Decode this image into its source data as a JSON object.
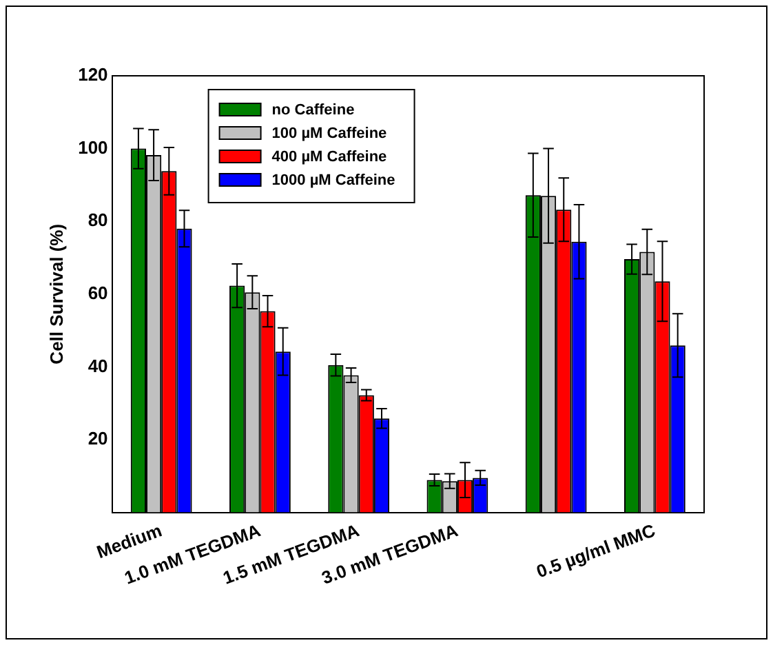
{
  "chart_data": {
    "type": "bar",
    "ylabel": "Cell Survival (%)",
    "categories": [
      "Medium",
      "1.0 mM TEGDMA",
      "1.5 mM TEGDMA",
      "3.0 mM TEGDMA",
      null,
      "0.5 µg/ml MMC"
    ],
    "series": [
      {
        "name": "no Caffeine",
        "color": "#008000",
        "values": [
          100,
          62.3,
          40.5,
          8.9,
          87.2,
          69.6
        ],
        "errors": [
          5.5,
          6,
          3,
          1.6,
          11.5,
          4.1
        ]
      },
      {
        "name": "100 µM Caffeine",
        "color": "#c0c0c0",
        "values": [
          98.2,
          60.5,
          37.7,
          8.6,
          87,
          71.6
        ],
        "errors": [
          7,
          4.5,
          2,
          2,
          13,
          6.2
        ]
      },
      {
        "name": "400 µM Caffeine",
        "color": "#ff0000",
        "values": [
          93.8,
          55.3,
          32.2,
          8.9,
          83.2,
          63.5
        ],
        "errors": [
          6.5,
          4.3,
          1.5,
          4.8,
          8.7,
          11
        ]
      },
      {
        "name": "1000 µM Caffeine",
        "color": "#0000ff",
        "values": [
          78,
          44.2,
          25.8,
          9.5,
          74.4,
          45.9
        ],
        "errors": [
          5,
          6.5,
          2.7,
          2,
          10.2,
          8.7
        ]
      }
    ],
    "ylim": [
      0,
      120
    ],
    "yticks": [
      20,
      40,
      60,
      80,
      100,
      120
    ],
    "grid": false,
    "legend": "top left"
  }
}
